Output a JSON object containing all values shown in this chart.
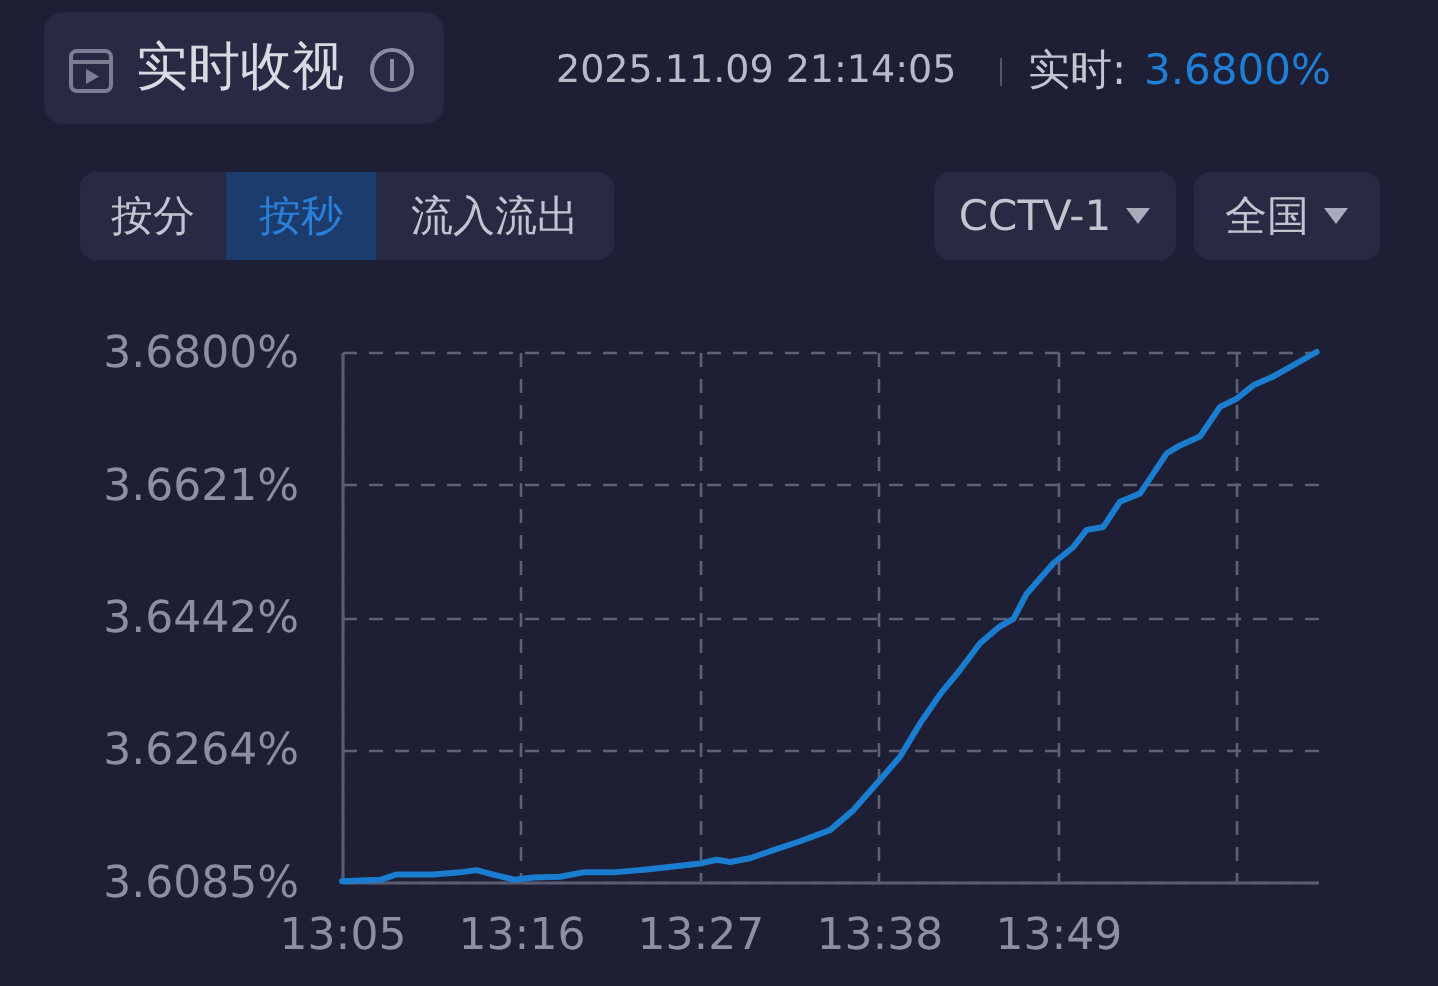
{
  "chart_data": {
    "type": "line",
    "title": "实时收视",
    "subtitle": "2025.11.09 21:14:05",
    "annotations": [
      "实时:",
      "3.6800%",
      "按分",
      "按秒",
      "流入流出",
      "CCTV-1",
      "全国"
    ],
    "x": [
      13.0833,
      13.1223,
      13.1387,
      13.177,
      13.2042,
      13.2212,
      13.2384,
      13.2602,
      13.2794,
      13.3067,
      13.3306,
      13.3614,
      13.3954,
      13.4229,
      13.4501,
      13.4671,
      13.4809,
      13.5013,
      13.5253,
      13.5526,
      13.5833,
      13.6073,
      13.6346,
      13.6551,
      13.6756,
      13.696,
      13.7165,
      13.737,
      13.7575,
      13.7712,
      13.7848,
      13.8122,
      13.8327,
      13.8462,
      13.8634,
      13.8804,
      13.9009,
      13.9282,
      13.9419,
      13.9624,
      13.9829,
      13.9999,
      14.0171,
      14.0376,
      14.0819
    ],
    "series": [
      {
        "color": "#1a7dd0",
        "values": [
          3.6086,
          3.6088,
          3.6095,
          3.6095,
          3.6098,
          3.6101,
          3.6095,
          3.6088,
          3.6091,
          3.6092,
          3.6098,
          3.6098,
          3.6102,
          3.6106,
          3.611,
          3.6115,
          3.6112,
          3.6117,
          3.6128,
          3.614,
          3.6155,
          3.6182,
          3.6223,
          3.6254,
          3.6299,
          3.6338,
          3.6371,
          3.6407,
          3.643,
          3.644,
          3.6474,
          3.6515,
          3.6537,
          3.656,
          3.6564,
          3.6598,
          3.6609,
          3.6663,
          3.6674,
          3.6686,
          3.6726,
          3.6737,
          3.6755,
          3.6767,
          3.68
        ]
      }
    ],
    "xlim": [
      13.0833,
      14.0833
    ],
    "xticks": [
      {
        "value": 13.0833,
        "label": "13:05"
      },
      {
        "value": 13.2667,
        "label": "13:16"
      },
      {
        "value": 13.45,
        "label": "13:27"
      },
      {
        "value": 13.6333,
        "label": "13:38"
      },
      {
        "value": 13.8167,
        "label": "13:49"
      },
      {
        "value": 14,
        "label": null
      }
    ],
    "ylim": [
      3.6085,
      3.68
    ],
    "yticks": [
      {
        "value": 3.6085,
        "label": "3.6085%"
      },
      {
        "value": 3.6264,
        "label": "3.6264%"
      },
      {
        "value": 3.6442,
        "label": "3.6442%"
      },
      {
        "value": 3.6621,
        "label": "3.6621%"
      },
      {
        "value": 3.68,
        "label": "3.6800%"
      }
    ],
    "grid": true
  }
}
